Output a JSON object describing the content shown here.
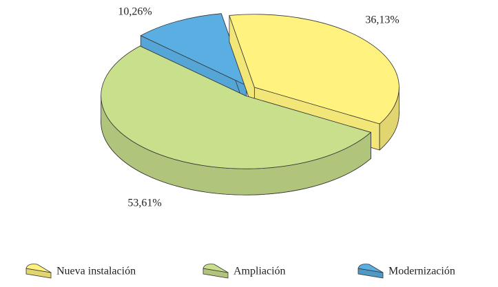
{
  "chart_data": {
    "type": "pie3d",
    "categories": [
      "Nueva instalación",
      "Ampliación",
      "Modernización"
    ],
    "values": [
      36.13,
      53.61,
      10.26
    ],
    "value_labels": [
      "36,13%",
      "53,61%",
      "10,26%"
    ],
    "colors": [
      "#fff27e",
      "#c8df8c",
      "#5aaee2"
    ],
    "legend": "bottom"
  }
}
